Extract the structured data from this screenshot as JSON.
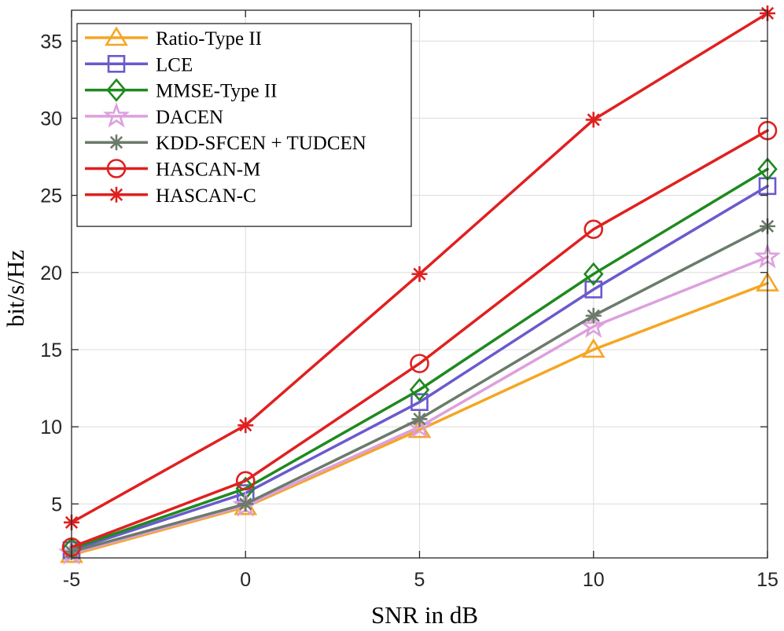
{
  "chart_data": {
    "type": "line",
    "title": "",
    "xlabel": "SNR in dB",
    "ylabel": "bit/s/Hz",
    "x": [
      -5,
      0,
      5,
      10,
      15
    ],
    "xlim": [
      -5,
      15
    ],
    "ylim": [
      1.5,
      37
    ],
    "xticks": [
      -5,
      0,
      5,
      10,
      15
    ],
    "yticks": [
      5,
      10,
      15,
      20,
      25,
      30,
      35
    ],
    "grid": true,
    "legend_position": "top-left",
    "series": [
      {
        "name": "Ratio-Type II",
        "color": "#f5a623",
        "marker": "triangle",
        "values": [
          1.7,
          4.8,
          9.8,
          15.0,
          19.3
        ]
      },
      {
        "name": "LCE",
        "color": "#6a5acd",
        "marker": "square",
        "values": [
          2.0,
          5.7,
          11.6,
          18.9,
          25.6
        ]
      },
      {
        "name": "MMSE-Type II",
        "color": "#1e8a1e",
        "marker": "diamond",
        "values": [
          2.1,
          6.0,
          12.4,
          19.9,
          26.7
        ]
      },
      {
        "name": "DACEN",
        "color": "#dda0dd",
        "marker": "pentagram",
        "values": [
          1.8,
          4.9,
          10.0,
          16.5,
          21.0
        ]
      },
      {
        "name": "KDD-SFCEN + TUDCEN",
        "color": "#6b7b6b",
        "marker": "asterisk",
        "values": [
          1.9,
          5.0,
          10.5,
          17.2,
          23.0
        ]
      },
      {
        "name": "HASCAN-M",
        "color": "#e02020",
        "marker": "circle",
        "values": [
          2.2,
          6.5,
          14.1,
          22.8,
          29.2
        ]
      },
      {
        "name": "HASCAN-C",
        "color": "#e02020",
        "marker": "asterisk",
        "values": [
          3.8,
          10.1,
          19.9,
          29.9,
          36.8
        ]
      }
    ]
  }
}
